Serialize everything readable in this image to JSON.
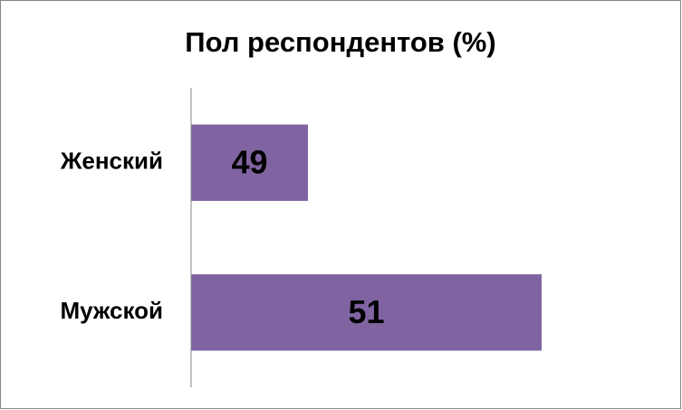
{
  "chart_data": {
    "type": "bar",
    "orientation": "horizontal",
    "title": "Пол респондентов (%)",
    "categories": [
      "Женский",
      "Мужской"
    ],
    "values": [
      49,
      51
    ],
    "color": "#8064a2",
    "xlim": [
      48,
      52
    ]
  }
}
